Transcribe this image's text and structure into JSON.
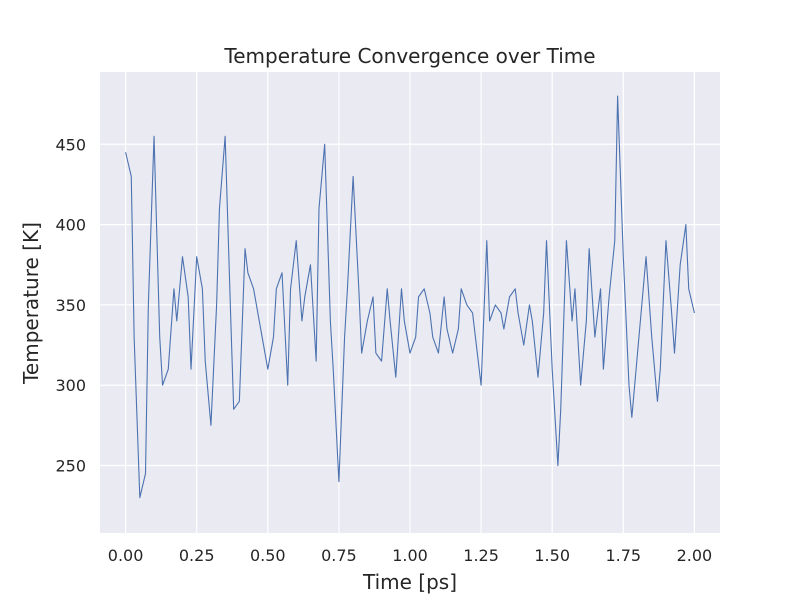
{
  "chart_data": {
    "type": "line",
    "title": "Temperature Convergence over Time",
    "xlabel": "Time [ps]",
    "ylabel": "Temperature [K]",
    "xlim": [
      -0.09,
      2.09
    ],
    "ylim": [
      208,
      495
    ],
    "xticks": [
      0.0,
      0.25,
      0.5,
      0.75,
      1.0,
      1.25,
      1.5,
      1.75,
      2.0
    ],
    "xtick_labels": [
      "0.00",
      "0.25",
      "0.50",
      "0.75",
      "1.00",
      "1.25",
      "1.50",
      "1.75",
      "2.00"
    ],
    "yticks": [
      250,
      300,
      350,
      400,
      450
    ],
    "ytick_labels": [
      "250",
      "300",
      "350",
      "400",
      "450"
    ],
    "grid": true,
    "colors": {
      "background": "#eaeaf2",
      "grid": "#ffffff",
      "line": "#4c72b0",
      "text": "#262626"
    },
    "series": [
      {
        "x": [
          0.0,
          0.02,
          0.03,
          0.05,
          0.07,
          0.08,
          0.1,
          0.12,
          0.13,
          0.15,
          0.17,
          0.18,
          0.2,
          0.22,
          0.23,
          0.25,
          0.27,
          0.28,
          0.3,
          0.32,
          0.33,
          0.35,
          0.37,
          0.38,
          0.4,
          0.42,
          0.43,
          0.45,
          0.47,
          0.48,
          0.5,
          0.52,
          0.53,
          0.55,
          0.57,
          0.58,
          0.6,
          0.62,
          0.63,
          0.65,
          0.67,
          0.68,
          0.7,
          0.72,
          0.73,
          0.75,
          0.77,
          0.78,
          0.8,
          0.82,
          0.83,
          0.85,
          0.87,
          0.88,
          0.9,
          0.92,
          0.93,
          0.95,
          0.97,
          0.98,
          1.0,
          1.02,
          1.03,
          1.05,
          1.07,
          1.08,
          1.1,
          1.12,
          1.13,
          1.15,
          1.17,
          1.18,
          1.2,
          1.22,
          1.23,
          1.25,
          1.27,
          1.28,
          1.3,
          1.32,
          1.33,
          1.35,
          1.37,
          1.38,
          1.4,
          1.42,
          1.43,
          1.45,
          1.47,
          1.48,
          1.5,
          1.52,
          1.53,
          1.55,
          1.57,
          1.58,
          1.6,
          1.62,
          1.63,
          1.65,
          1.67,
          1.68,
          1.7,
          1.72,
          1.73,
          1.75,
          1.77,
          1.78,
          1.8,
          1.82,
          1.83,
          1.85,
          1.87,
          1.88,
          1.9,
          1.92,
          1.93,
          1.95,
          1.97,
          1.98,
          2.0
        ],
        "y": [
          445,
          430,
          330,
          230,
          245,
          350,
          455,
          330,
          300,
          310,
          360,
          340,
          380,
          355,
          310,
          380,
          360,
          315,
          275,
          350,
          410,
          455,
          340,
          285,
          290,
          385,
          370,
          360,
          340,
          330,
          310,
          330,
          360,
          370,
          300,
          360,
          390,
          340,
          355,
          375,
          315,
          410,
          450,
          340,
          310,
          240,
          330,
          360,
          430,
          360,
          320,
          340,
          355,
          320,
          315,
          360,
          340,
          305,
          360,
          340,
          320,
          330,
          355,
          360,
          345,
          330,
          320,
          355,
          335,
          320,
          335,
          360,
          350,
          345,
          330,
          300,
          390,
          340,
          350,
          345,
          335,
          355,
          360,
          345,
          325,
          350,
          340,
          305,
          345,
          390,
          310,
          250,
          285,
          390,
          340,
          360,
          300,
          340,
          385,
          330,
          360,
          310,
          355,
          390,
          480,
          380,
          300,
          280,
          320,
          360,
          380,
          330,
          290,
          310,
          390,
          345,
          320,
          375,
          400,
          360,
          345
        ]
      }
    ]
  }
}
